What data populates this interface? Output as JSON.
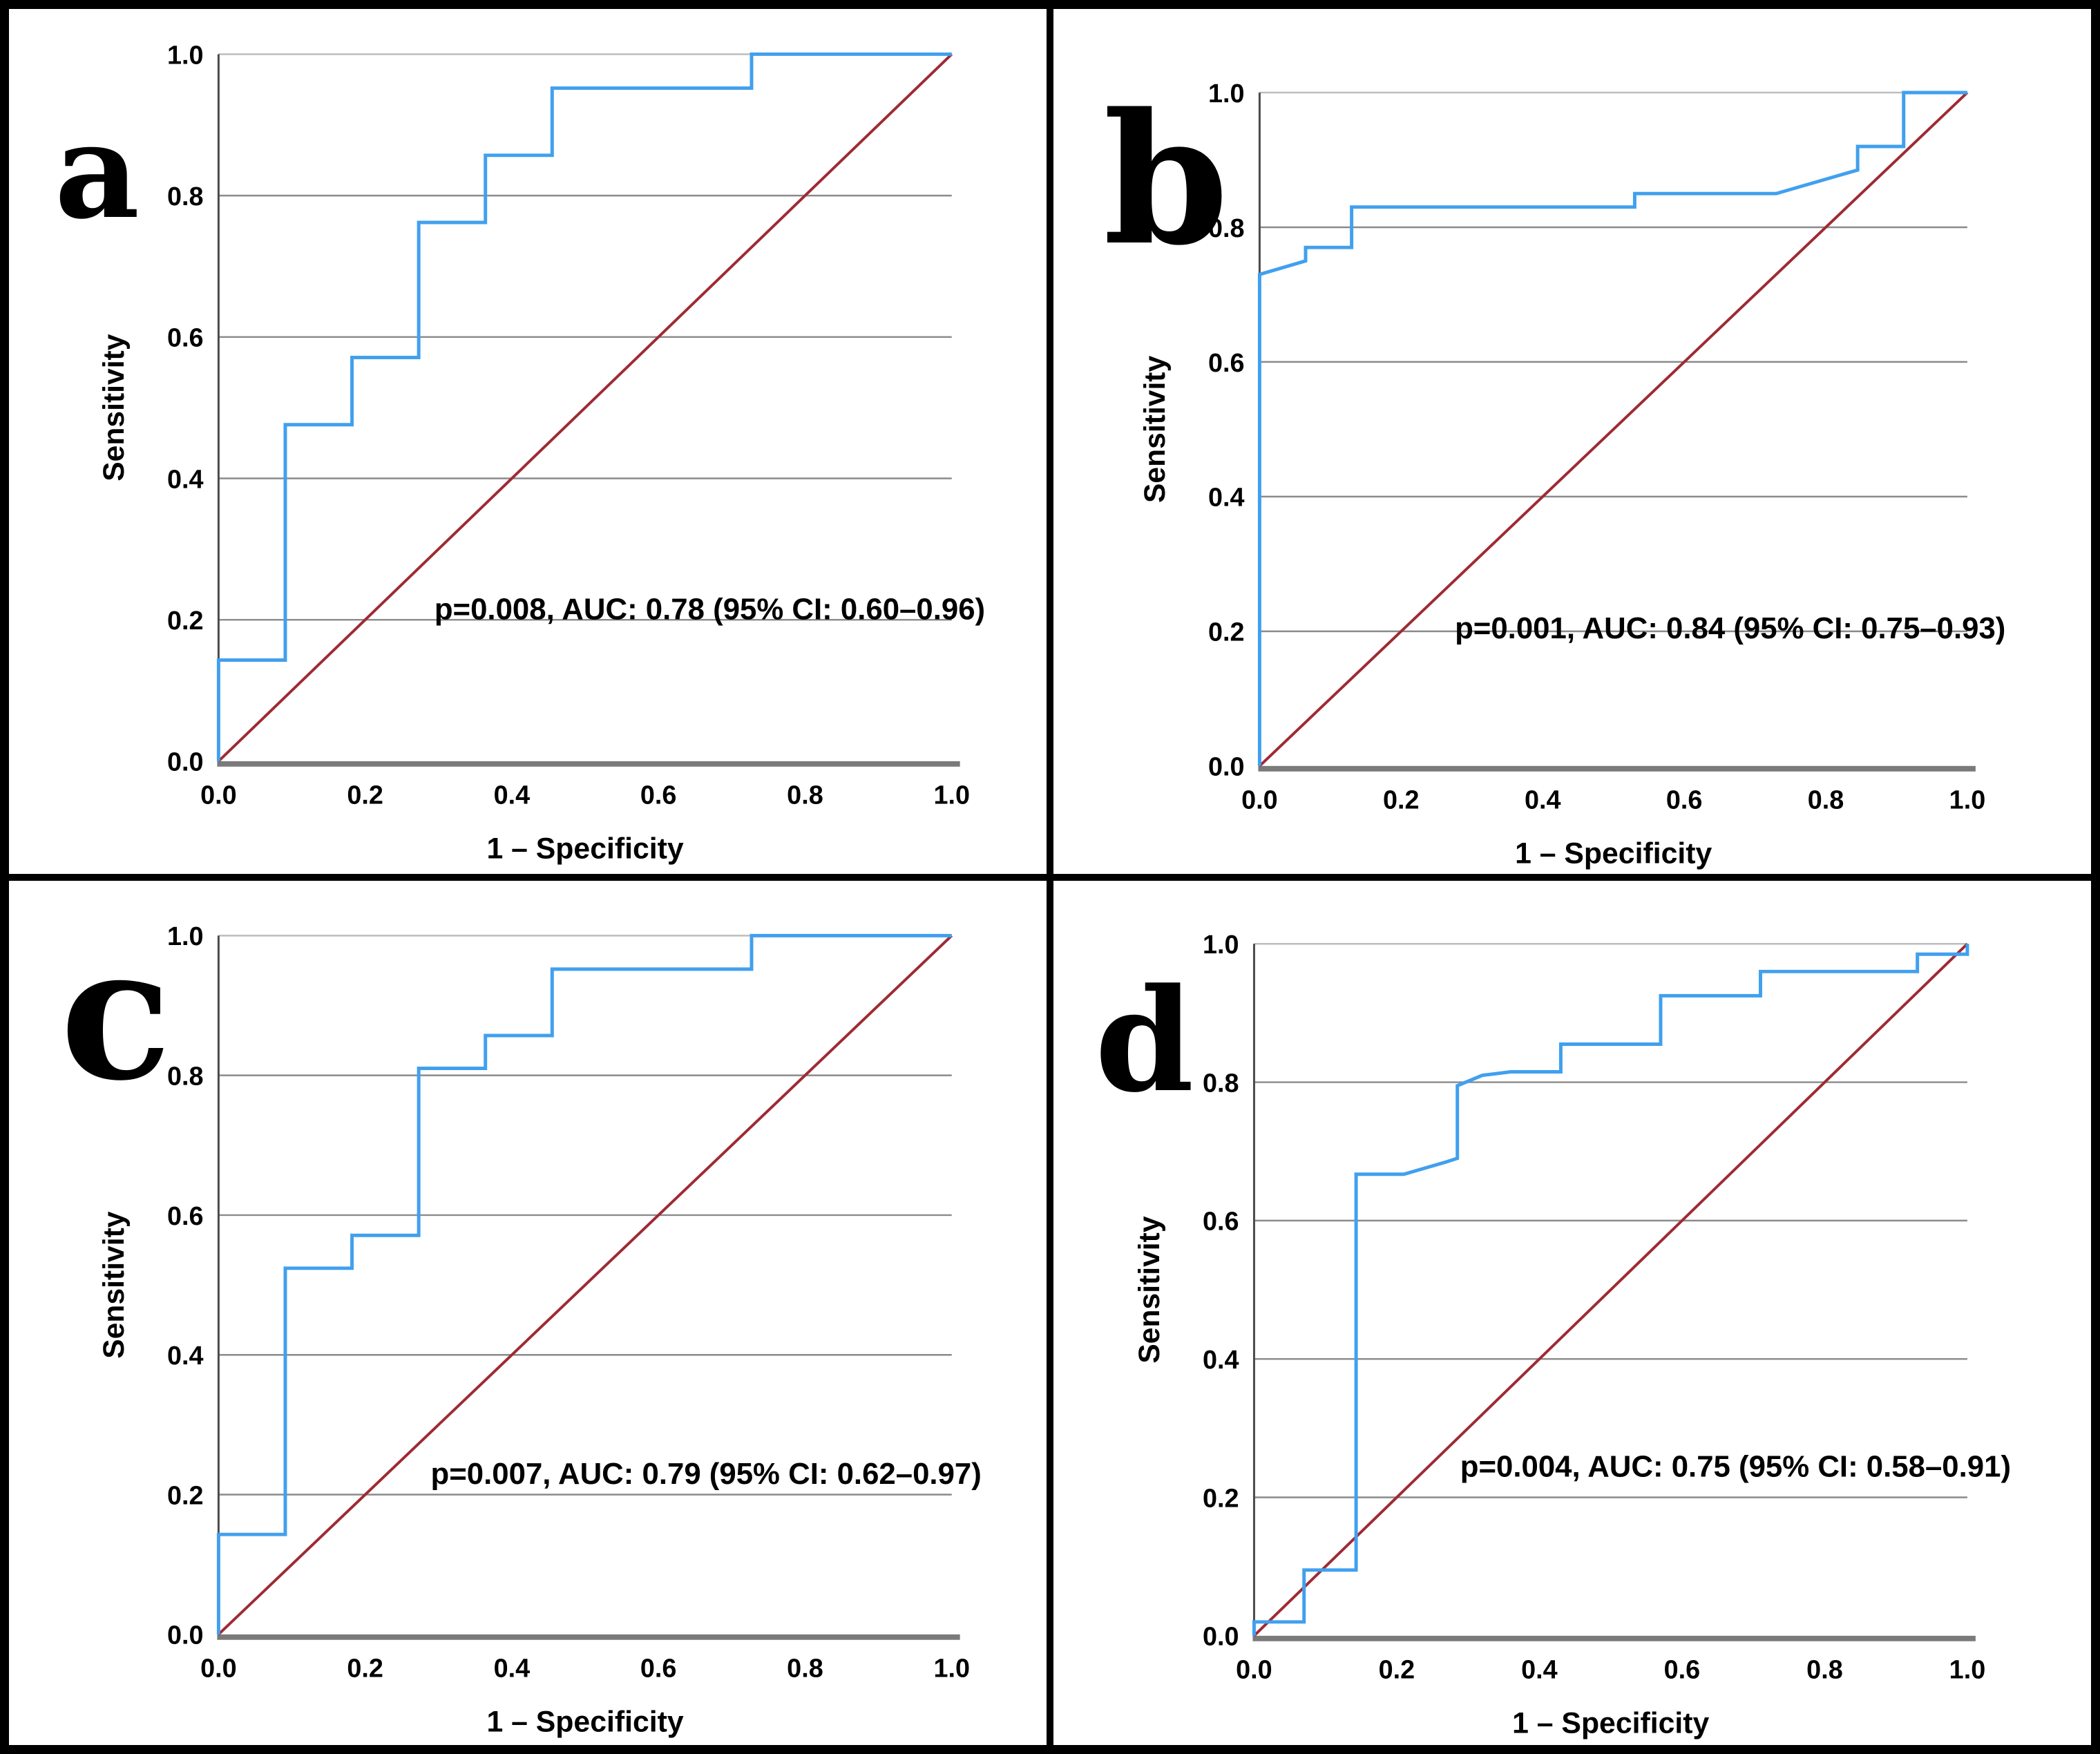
{
  "figure": {
    "description": "Four-panel ROC curve figure (2x2 grid) labeled a, b, c, d",
    "background": "#ffffff",
    "frame_color": "#000000"
  },
  "colors": {
    "curve": "#41a0ee",
    "reference": "#9e2b34",
    "grid": "#8a8a8a",
    "grid_top": "#bdbdbd",
    "y_axis": "#4a4a4a",
    "x_axis": "#7a7a7a",
    "text": "#000000"
  },
  "chart_data": [
    {
      "panel_letter": "a",
      "type": "line",
      "xlabel": "1 – Specificity",
      "ylabel": "Sensitivity",
      "xlim": [
        0,
        1
      ],
      "ylim": [
        0,
        1
      ],
      "xticks": [
        "0.0",
        "0.2",
        "0.4",
        "0.6",
        "0.8",
        "1.0"
      ],
      "yticks": [
        "0.0",
        "0.2",
        "0.4",
        "0.6",
        "0.8",
        "1.0"
      ],
      "grid": "horizontal",
      "legend": "none",
      "annotation": "p=0.008, AUC: 0.78 (95% CI: 0.60–0.96)",
      "stats": {
        "p": "0.008",
        "auc": "0.78",
        "ci95": "0.60–0.96"
      },
      "series": [
        {
          "name": "roc-curve",
          "color_key": "curve",
          "points": [
            [
              0,
              0
            ],
            [
              0,
              0.143
            ],
            [
              0.091,
              0.143
            ],
            [
              0.091,
              0.476
            ],
            [
              0.182,
              0.476
            ],
            [
              0.182,
              0.571
            ],
            [
              0.273,
              0.571
            ],
            [
              0.273,
              0.762
            ],
            [
              0.364,
              0.762
            ],
            [
              0.364,
              0.857
            ],
            [
              0.455,
              0.857
            ],
            [
              0.455,
              0.952
            ],
            [
              0.727,
              0.952
            ],
            [
              0.727,
              1
            ],
            [
              1,
              1
            ]
          ]
        },
        {
          "name": "chance-diagonal",
          "color_key": "reference",
          "points": [
            [
              0,
              0
            ],
            [
              1,
              1
            ]
          ]
        }
      ]
    },
    {
      "panel_letter": "b",
      "type": "line",
      "xlabel": "1 – Specificity",
      "ylabel": "Sensitivity",
      "xlim": [
        0,
        1
      ],
      "ylim": [
        0,
        1
      ],
      "xticks": [
        "0.0",
        "0.2",
        "0.4",
        "0.6",
        "0.8",
        "1.0"
      ],
      "yticks": [
        "0.0",
        "0.2",
        "0.4",
        "0.6",
        "0.8",
        "1.0"
      ],
      "grid": "horizontal",
      "legend": "none",
      "annotation": "p=0.001, AUC: 0.84 (95% CI: 0.75–0.93)",
      "stats": {
        "p": "0.001",
        "auc": "0.84",
        "ci95": "0.75–0.93"
      },
      "series": [
        {
          "name": "roc-curve",
          "color_key": "curve",
          "points": [
            [
              0,
              0
            ],
            [
              0,
              0.73
            ],
            [
              0.065,
              0.75
            ],
            [
              0.065,
              0.77
            ],
            [
              0.13,
              0.77
            ],
            [
              0.13,
              0.83
            ],
            [
              0.53,
              0.83
            ],
            [
              0.53,
              0.85
            ],
            [
              0.73,
              0.85
            ],
            [
              0.845,
              0.885
            ],
            [
              0.845,
              0.92
            ],
            [
              0.91,
              0.92
            ],
            [
              0.91,
              1
            ],
            [
              1,
              1
            ]
          ]
        },
        {
          "name": "chance-diagonal",
          "color_key": "reference",
          "points": [
            [
              0,
              0
            ],
            [
              1,
              1
            ]
          ]
        }
      ]
    },
    {
      "panel_letter": "c",
      "type": "line",
      "xlabel": "1 – Specificity",
      "ylabel": "Sensitivity",
      "xlim": [
        0,
        1
      ],
      "ylim": [
        0,
        1
      ],
      "xticks": [
        "0.0",
        "0.2",
        "0.4",
        "0.6",
        "0.8",
        "1.0"
      ],
      "yticks": [
        "0.0",
        "0.2",
        "0.4",
        "0.6",
        "0.8",
        "1.0"
      ],
      "grid": "horizontal",
      "legend": "none",
      "annotation": "p=0.007, AUC: 0.79 (95% CI: 0.62–0.97)",
      "stats": {
        "p": "0.007",
        "auc": "0.79",
        "ci95": "0.62–0.97"
      },
      "series": [
        {
          "name": "roc-curve",
          "color_key": "curve",
          "points": [
            [
              0,
              0
            ],
            [
              0,
              0.143
            ],
            [
              0.091,
              0.143
            ],
            [
              0.091,
              0.524
            ],
            [
              0.182,
              0.524
            ],
            [
              0.182,
              0.571
            ],
            [
              0.273,
              0.571
            ],
            [
              0.273,
              0.81
            ],
            [
              0.364,
              0.81
            ],
            [
              0.364,
              0.857
            ],
            [
              0.455,
              0.857
            ],
            [
              0.455,
              0.952
            ],
            [
              0.727,
              0.952
            ],
            [
              0.727,
              1
            ],
            [
              1,
              1
            ]
          ]
        },
        {
          "name": "chance-diagonal",
          "color_key": "reference",
          "points": [
            [
              0,
              0
            ],
            [
              1,
              1
            ]
          ]
        }
      ]
    },
    {
      "panel_letter": "d",
      "type": "line",
      "xlabel": "1 – Specificity",
      "ylabel": "Sensitivity",
      "xlim": [
        0,
        1
      ],
      "ylim": [
        0,
        1
      ],
      "xticks": [
        "0.0",
        "0.2",
        "0.4",
        "0.6",
        "0.8",
        "1.0"
      ],
      "yticks": [
        "0.0",
        "0.2",
        "0.4",
        "0.6",
        "0.8",
        "1.0"
      ],
      "grid": "horizontal",
      "legend": "none",
      "annotation": "p=0.004, AUC: 0.75 (95% CI: 0.58–0.91)",
      "stats": {
        "p": "0.004",
        "auc": "0.75",
        "ci95": "0.58–0.91"
      },
      "series": [
        {
          "name": "roc-curve",
          "color_key": "curve",
          "points": [
            [
              0,
              0
            ],
            [
              0,
              0.02
            ],
            [
              0.07,
              0.02
            ],
            [
              0.07,
              0.095
            ],
            [
              0.143,
              0.095
            ],
            [
              0.143,
              0.667
            ],
            [
              0.21,
              0.667
            ],
            [
              0.27,
              0.685
            ],
            [
              0.285,
              0.69
            ],
            [
              0.285,
              0.795
            ],
            [
              0.32,
              0.81
            ],
            [
              0.36,
              0.815
            ],
            [
              0.43,
              0.815
            ],
            [
              0.43,
              0.855
            ],
            [
              0.57,
              0.855
            ],
            [
              0.57,
              0.925
            ],
            [
              0.71,
              0.925
            ],
            [
              0.71,
              0.96
            ],
            [
              0.93,
              0.96
            ],
            [
              0.93,
              0.985
            ],
            [
              1,
              0.985
            ],
            [
              1,
              1
            ]
          ]
        },
        {
          "name": "chance-diagonal",
          "color_key": "reference",
          "points": [
            [
              0,
              0
            ],
            [
              1,
              1
            ]
          ]
        }
      ]
    }
  ]
}
